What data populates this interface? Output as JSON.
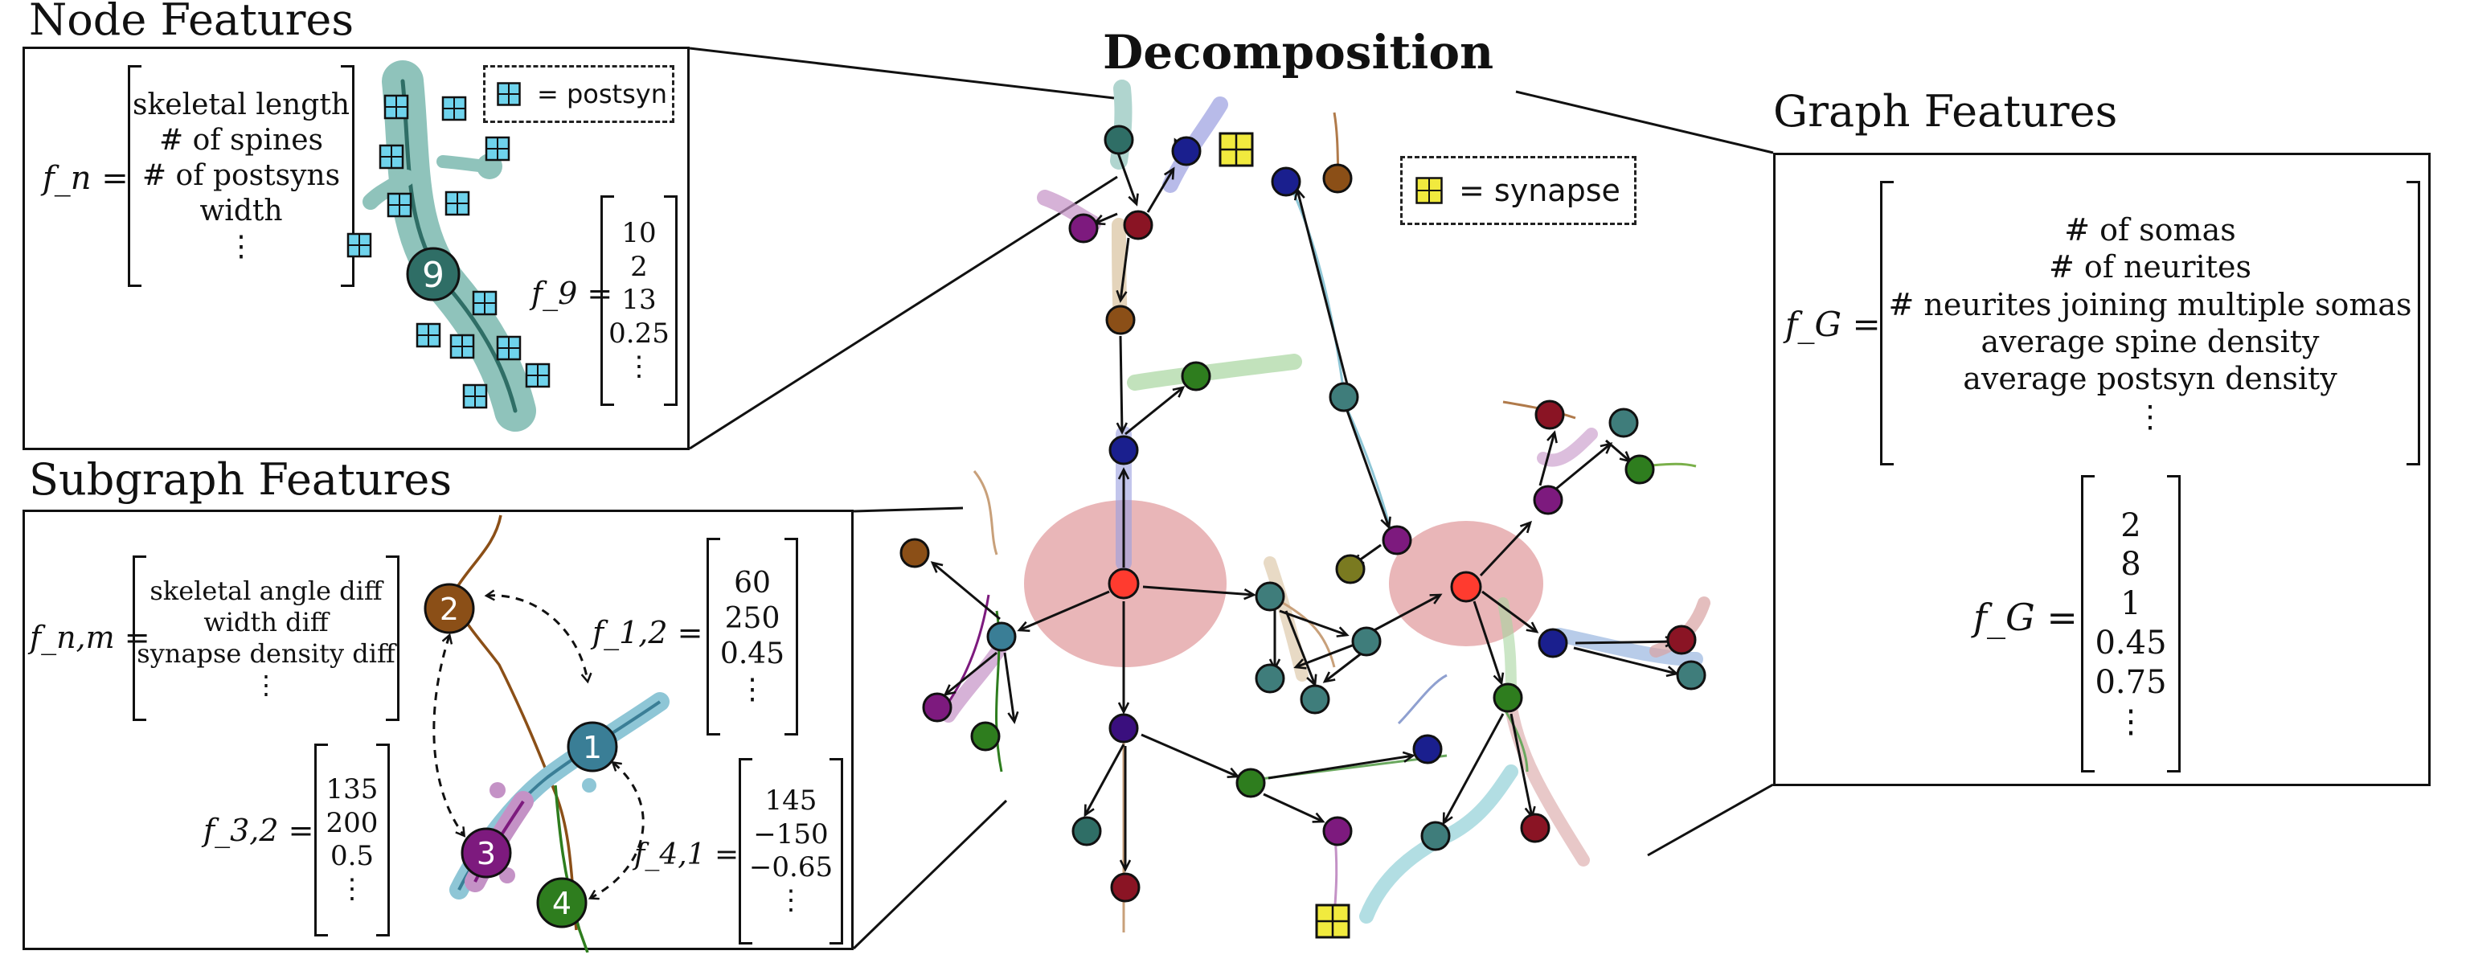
{
  "titles": {
    "node_features": "Node Features",
    "subgraph_features": "Subgraph Features",
    "decomposition": "Decomposition",
    "graph_features": "Graph Features"
  },
  "node_panel": {
    "fn_label": "f_n =",
    "fn_rows": [
      "skeletal length",
      "# of spines",
      "# of postsyns",
      "width",
      "⋮"
    ],
    "legend_text": "= postsyn",
    "node_number": "9",
    "f9_label": "f_9 =",
    "f9_rows": [
      "10",
      "2",
      "13",
      "0.25",
      "⋮"
    ]
  },
  "subgraph_panel": {
    "fnm_label": "f_n,m =",
    "fnm_rows": [
      "skeletal angle diff",
      "width diff",
      "synapse density diff",
      "⋮"
    ],
    "f12_label": "f_1,2 =",
    "f12_rows": [
      "60",
      "250",
      "0.45",
      "⋮"
    ],
    "f32_label": "f_3,2 =",
    "f32_rows": [
      "135",
      "200",
      "0.5",
      "⋮"
    ],
    "f41_label": "f_4,1 =",
    "f41_rows": [
      "145",
      "−150",
      "−0.65",
      "⋮"
    ],
    "nodes": [
      {
        "id": "1",
        "color": "#3a7e96"
      },
      {
        "id": "2",
        "color": "#8b4f17"
      },
      {
        "id": "3",
        "color": "#7d1a7e"
      },
      {
        "id": "4",
        "color": "#2e7d1e"
      }
    ]
  },
  "decomposition": {
    "legend_text": "= synapse"
  },
  "graph_panel": {
    "fg_label": "f_G =",
    "fg_rows": [
      "# of somas",
      "# of neurites",
      "# neurites joining multiple somas",
      "average spine density",
      "average postsyn density",
      "⋮"
    ],
    "fg_values_label": "f_G =",
    "fg_values": [
      "2",
      "8",
      "1",
      "0.45",
      "0.75",
      "⋮"
    ]
  },
  "colors": {
    "postsyn": "#6fd3ec",
    "synapse": "#f1ea3e",
    "soma_region": "#e5a9ab",
    "soma_node": "#ff3b2f",
    "teal": "#3a7e96",
    "dark_teal": "#2f6e66",
    "navy": "#1a1f8e",
    "crimson": "#8a1424",
    "purple": "#7d1a7e",
    "brown": "#8b4f17",
    "green": "#2e7d1e",
    "olive": "#7a7a20",
    "indigo": "#3a0f7e",
    "gray_teal": "#3f7d7b"
  }
}
